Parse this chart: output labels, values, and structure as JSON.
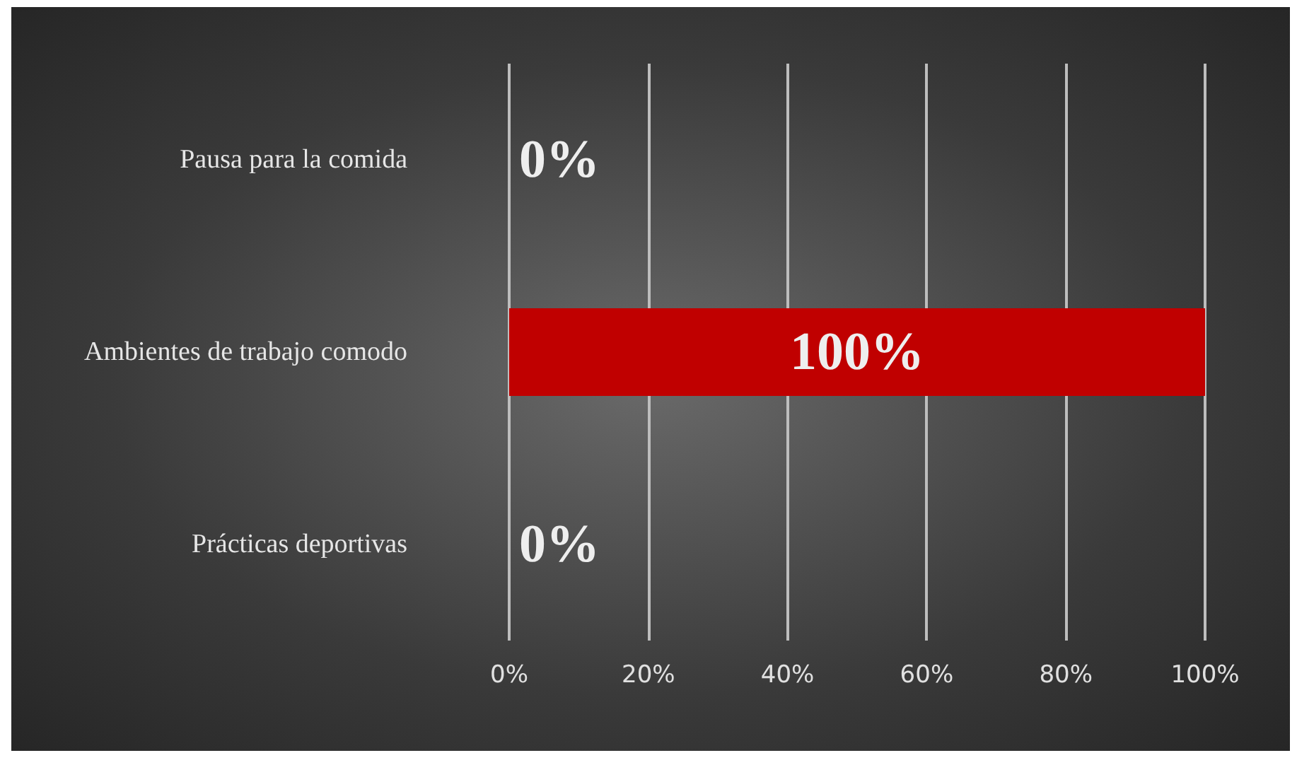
{
  "chart_data": {
    "type": "bar",
    "orientation": "horizontal",
    "categories": [
      "Pausa para la comida",
      "Ambientes de trabajo comodo",
      "Prácticas deportivas"
    ],
    "values": [
      0,
      100,
      0
    ],
    "color": "#c00000",
    "value_labels": [
      "0%",
      "100%",
      "0%"
    ],
    "xlim": [
      0,
      100
    ],
    "xticks": [
      {
        "value": 0,
        "label": "0%"
      },
      {
        "value": 20,
        "label": "20%"
      },
      {
        "value": 40,
        "label": "40%"
      },
      {
        "value": 60,
        "label": "60%"
      },
      {
        "value": 80,
        "label": "80%"
      },
      {
        "value": 100,
        "label": "100%"
      }
    ],
    "grid": "x"
  }
}
